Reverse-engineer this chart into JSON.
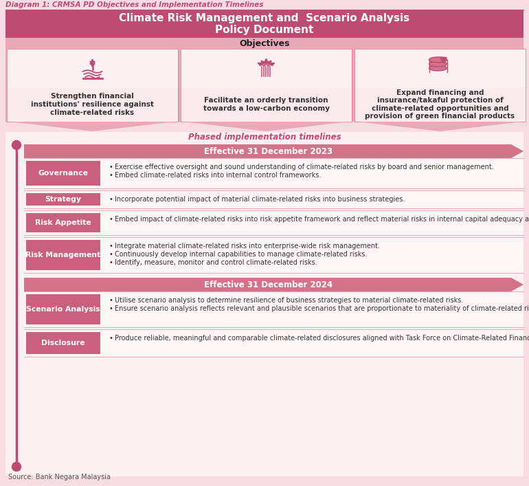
{
  "title": "Diagram 1: CRMSA PD Objectives and Implementation Timelines",
  "header_title": "Climate Risk Management and  Scenario Analysis\nPolicy Document",
  "objectives_label": "Objectives",
  "bg_color": "#f7dde3",
  "header_bg": "#be4b72",
  "section_bg": "#e8a8b8",
  "label_bg": "#c96080",
  "dark_pink": "#be4b72",
  "medium_pink": "#d4728a",
  "light_pink": "#f7dde3",
  "lighter_pink": "#fdf0f2",
  "row_alt": "#fbeaed",
  "objectives": [
    "Strengthen financial\ninstitutions' resilience against\nclimate-related risks",
    "Facilitate an orderly transition\ntowards a low-carbon economy",
    "Expand financing and\ninsurance/takaful protection of\nclimate-related opportunities and\nprovision of green financial products"
  ],
  "phased_label": "Phased implementation timelines",
  "banner_2023": "Effective 31 December 2023",
  "banner_2024": "Effective 31 December 2024",
  "categories_2023": [
    "Governance",
    "Strategy",
    "Risk Appetite",
    "Risk Management"
  ],
  "bullets_2023": [
    [
      "Exercise effective oversight and sound understanding of climate-related risks by board and senior management.",
      "Embed climate-related risks into internal control frameworks."
    ],
    [
      "Incorporate potential impact of material climate-related risks into business strategies."
    ],
    [
      "Embed impact of climate-related risks into risk appetite framework and reflect material risks in internal capital adequacy assessment process."
    ],
    [
      "Integrate material climate-related risks into enterprise-wide risk management.",
      "Continuously develop internal capabilities to manage climate-related risks.",
      "Identify, measure, monitor and control climate-related risks."
    ]
  ],
  "categories_2024": [
    "Scenario Analysis",
    "Disclosure"
  ],
  "bullets_2024": [
    [
      "Utilise scenario analysis to determine resilience of business strategies to material climate-related risks.",
      "Ensure scenario analysis reflects relevant and plausible scenarios that are proportionate to materiality of climate-related risks."
    ],
    [
      "Produce reliable, meaningful and comparable climate-related disclosures aligned with Task Force on Climate-Related Financial Disclosures (TCFD) recommendations."
    ]
  ],
  "source": "Source: Bank Negara Malaysia"
}
